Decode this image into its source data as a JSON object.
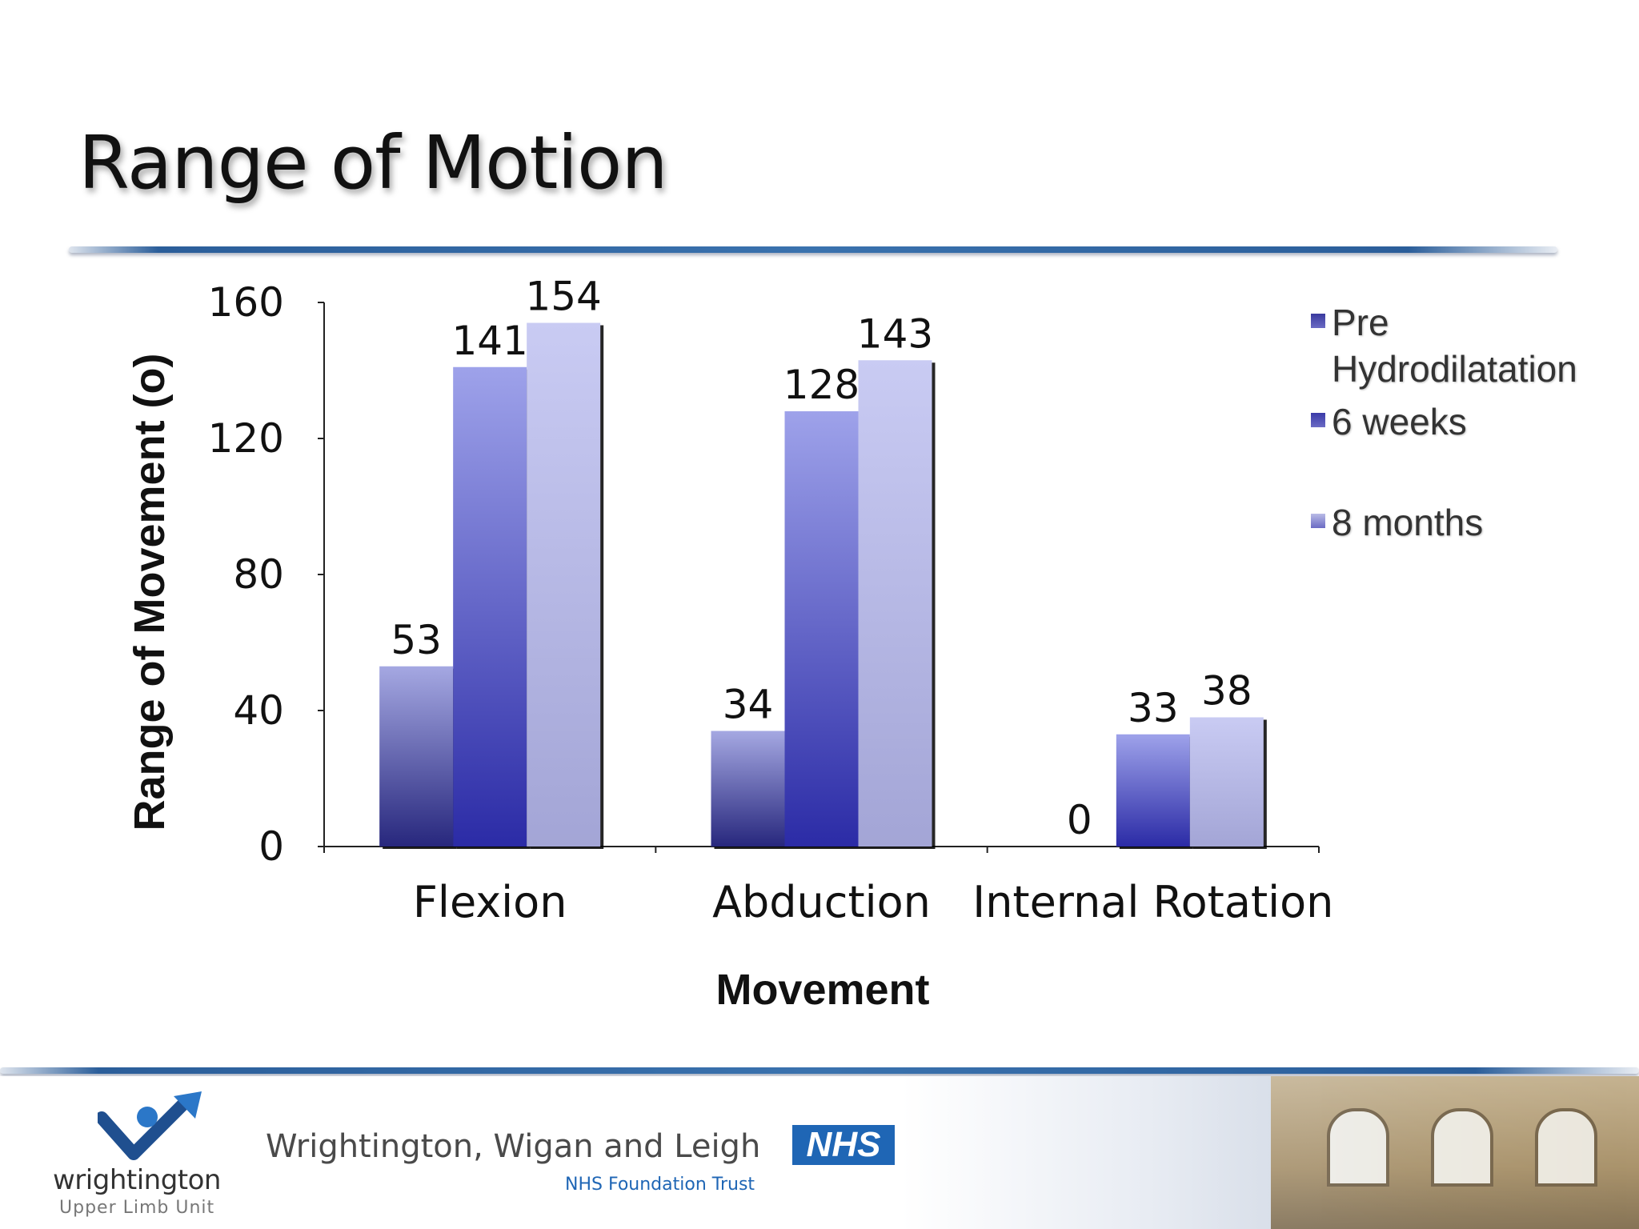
{
  "slide": {
    "title": "Range of Motion"
  },
  "legend": {
    "items": [
      {
        "label": "Pre Hydrodilatation",
        "color": "#3a3a9e"
      },
      {
        "label": "6 weeks",
        "color": "#3a3aa8"
      },
      {
        "label": "8 months",
        "color": "#b9bbe6"
      }
    ]
  },
  "chart_data": {
    "type": "bar",
    "xlabel": "Movement",
    "ylabel": "Range of Movement (o)",
    "ylim": [
      0,
      160
    ],
    "yticks": [
      0,
      40,
      80,
      120,
      160
    ],
    "categories": [
      "Flexion",
      "Abduction",
      "Internal Rotation"
    ],
    "series": [
      {
        "name": "Pre Hydrodilatation",
        "values": [
          53,
          34,
          0
        ],
        "color_top": "#a5a8e2",
        "color_bottom": "#27277d"
      },
      {
        "name": "6 weeks",
        "values": [
          141,
          128,
          33
        ],
        "color_top": "#9ea2ea",
        "color_bottom": "#2b2ba6"
      },
      {
        "name": "8 months",
        "values": [
          154,
          143,
          38
        ],
        "color_top": "#c9cbf3",
        "color_bottom": "#a3a5d6"
      }
    ],
    "data_labels": true,
    "legend_position": "top-right",
    "grid": false
  },
  "footer": {
    "logo_text": "wrightington",
    "logo_subtext": "Upper Limb Unit",
    "trust_name": "Wrightington, Wigan and Leigh",
    "nhs_badge": "NHS",
    "trust_subtitle": "NHS Foundation Trust"
  }
}
